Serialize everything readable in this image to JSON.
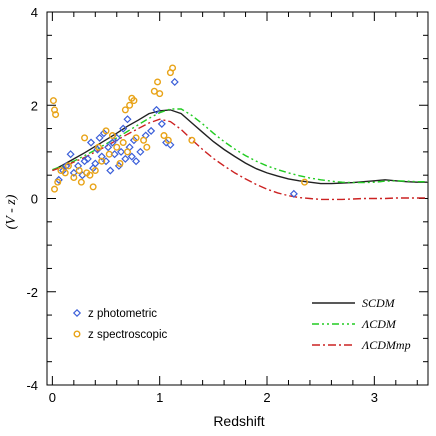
{
  "chart_data": {
    "type": "scatter",
    "xlabel": "Redshift",
    "ylabel": "(V - z)",
    "xlim": [
      -0.05,
      3.5
    ],
    "ylim": [
      -4,
      4
    ],
    "x_ticks": [
      0,
      1,
      2,
      3
    ],
    "x_tick_labels": [
      "0",
      "1",
      "2",
      "3"
    ],
    "y_ticks": [
      -4,
      -2,
      0,
      2,
      4
    ],
    "y_tick_labels": [
      "-4",
      "-2",
      "0",
      "2",
      "4"
    ],
    "grid": false,
    "legend_position": "bottom",
    "scatter_series": [
      {
        "name": "z photometric",
        "marker": "diamond",
        "color": "#3b5fd9",
        "points": [
          [
            0.06,
            0.4
          ],
          [
            0.1,
            0.6
          ],
          [
            0.13,
            0.7
          ],
          [
            0.17,
            0.95
          ],
          [
            0.2,
            0.55
          ],
          [
            0.24,
            0.7
          ],
          [
            0.28,
            0.5
          ],
          [
            0.3,
            0.8
          ],
          [
            0.33,
            0.85
          ],
          [
            0.36,
            1.2
          ],
          [
            0.38,
            0.65
          ],
          [
            0.4,
            0.75
          ],
          [
            0.42,
            1.05
          ],
          [
            0.44,
            1.3
          ],
          [
            0.46,
            0.9
          ],
          [
            0.48,
            1.4
          ],
          [
            0.5,
            0.8
          ],
          [
            0.52,
            1.1
          ],
          [
            0.54,
            0.6
          ],
          [
            0.56,
            1.2
          ],
          [
            0.58,
            0.95
          ],
          [
            0.6,
            1.3
          ],
          [
            0.62,
            0.7
          ],
          [
            0.64,
            1.0
          ],
          [
            0.66,
            1.5
          ],
          [
            0.68,
            0.85
          ],
          [
            0.7,
            1.7
          ],
          [
            0.72,
            1.1
          ],
          [
            0.74,
            0.9
          ],
          [
            0.76,
            1.25
          ],
          [
            0.78,
            0.8
          ],
          [
            0.82,
            1.0
          ],
          [
            0.87,
            1.35
          ],
          [
            0.92,
            1.45
          ],
          [
            0.97,
            1.9
          ],
          [
            1.02,
            1.6
          ],
          [
            1.06,
            1.2
          ],
          [
            1.1,
            1.15
          ],
          [
            1.14,
            2.5
          ],
          [
            2.25,
            0.1
          ]
        ]
      },
      {
        "name": "z spectroscopic",
        "marker": "circle",
        "color": "#e8a317",
        "points": [
          [
            0.01,
            2.1
          ],
          [
            0.02,
            1.9
          ],
          [
            0.03,
            1.8
          ],
          [
            0.02,
            0.2
          ],
          [
            0.05,
            0.35
          ],
          [
            0.08,
            0.6
          ],
          [
            0.12,
            0.55
          ],
          [
            0.15,
            0.7
          ],
          [
            0.2,
            0.45
          ],
          [
            0.25,
            0.6
          ],
          [
            0.27,
            0.35
          ],
          [
            0.3,
            1.3
          ],
          [
            0.32,
            0.55
          ],
          [
            0.35,
            0.5
          ],
          [
            0.38,
            0.25
          ],
          [
            0.4,
            0.6
          ],
          [
            0.43,
            1.1
          ],
          [
            0.46,
            0.8
          ],
          [
            0.5,
            1.45
          ],
          [
            0.53,
            0.95
          ],
          [
            0.56,
            1.35
          ],
          [
            0.6,
            1.1
          ],
          [
            0.63,
            0.75
          ],
          [
            0.66,
            1.2
          ],
          [
            0.68,
            1.9
          ],
          [
            0.7,
            1.0
          ],
          [
            0.72,
            2.0
          ],
          [
            0.74,
            2.15
          ],
          [
            0.76,
            2.1
          ],
          [
            0.78,
            1.3
          ],
          [
            0.85,
            1.25
          ],
          [
            0.88,
            1.1
          ],
          [
            0.95,
            2.3
          ],
          [
            0.98,
            2.5
          ],
          [
            1.0,
            2.25
          ],
          [
            1.04,
            1.35
          ],
          [
            1.08,
            1.25
          ],
          [
            1.1,
            2.7
          ],
          [
            1.12,
            2.8
          ],
          [
            1.3,
            1.25
          ],
          [
            2.35,
            0.35
          ]
        ]
      }
    ],
    "line_series": [
      {
        "name": "SCDM",
        "style": "solid",
        "color": "#222222",
        "x": [
          0.0,
          0.1,
          0.2,
          0.3,
          0.4,
          0.5,
          0.6,
          0.7,
          0.8,
          0.9,
          1.0,
          1.1,
          1.2,
          1.3,
          1.4,
          1.5,
          1.6,
          1.7,
          1.8,
          1.9,
          2.0,
          2.1,
          2.2,
          2.3,
          2.4,
          2.5,
          2.6,
          2.7,
          2.8,
          2.9,
          3.0,
          3.1,
          3.2,
          3.3,
          3.4,
          3.5
        ],
        "values": [
          0.6,
          0.72,
          0.85,
          0.98,
          1.12,
          1.26,
          1.4,
          1.55,
          1.68,
          1.82,
          1.88,
          1.9,
          1.82,
          1.62,
          1.42,
          1.22,
          1.05,
          0.9,
          0.76,
          0.64,
          0.55,
          0.48,
          0.42,
          0.38,
          0.35,
          0.32,
          0.32,
          0.33,
          0.34,
          0.36,
          0.38,
          0.4,
          0.38,
          0.36,
          0.35,
          0.35
        ]
      },
      {
        "name": "ΛCDM",
        "style": "dash-dot-dot",
        "color": "#22cc22",
        "x": [
          0.0,
          0.1,
          0.2,
          0.3,
          0.4,
          0.5,
          0.6,
          0.7,
          0.8,
          0.9,
          1.0,
          1.1,
          1.2,
          1.3,
          1.4,
          1.5,
          1.6,
          1.7,
          1.8,
          1.9,
          2.0,
          2.1,
          2.2,
          2.3,
          2.4,
          2.5,
          2.6,
          2.7,
          2.8,
          2.9,
          3.0,
          3.1,
          3.2,
          3.3,
          3.4,
          3.5
        ],
        "values": [
          0.62,
          0.7,
          0.8,
          0.92,
          1.04,
          1.17,
          1.3,
          1.44,
          1.58,
          1.72,
          1.84,
          1.92,
          1.92,
          1.78,
          1.6,
          1.4,
          1.22,
          1.06,
          0.92,
          0.8,
          0.7,
          0.62,
          0.55,
          0.49,
          0.44,
          0.4,
          0.37,
          0.35,
          0.34,
          0.34,
          0.35,
          0.37,
          0.38,
          0.37,
          0.36,
          0.36
        ]
      },
      {
        "name": "ΛCDMmp",
        "style": "dash-dot",
        "color": "#cc2222",
        "x": [
          0.0,
          0.1,
          0.2,
          0.3,
          0.4,
          0.5,
          0.6,
          0.7,
          0.8,
          0.9,
          1.0,
          1.1,
          1.2,
          1.3,
          1.4,
          1.5,
          1.6,
          1.7,
          1.8,
          1.9,
          2.0,
          2.1,
          2.2,
          2.3,
          2.4,
          2.5,
          2.6,
          2.7,
          2.8,
          2.9,
          3.0,
          3.1,
          3.2,
          3.3,
          3.4,
          3.5
        ],
        "values": [
          0.6,
          0.68,
          0.78,
          0.88,
          1.0,
          1.12,
          1.25,
          1.38,
          1.5,
          1.62,
          1.7,
          1.65,
          1.48,
          1.26,
          1.05,
          0.86,
          0.7,
          0.55,
          0.42,
          0.3,
          0.2,
          0.12,
          0.06,
          0.02,
          0.0,
          -0.02,
          -0.02,
          -0.02,
          -0.01,
          0.0,
          0.0,
          0.0,
          0.01,
          0.01,
          0.01,
          0.01
        ]
      }
    ]
  }
}
